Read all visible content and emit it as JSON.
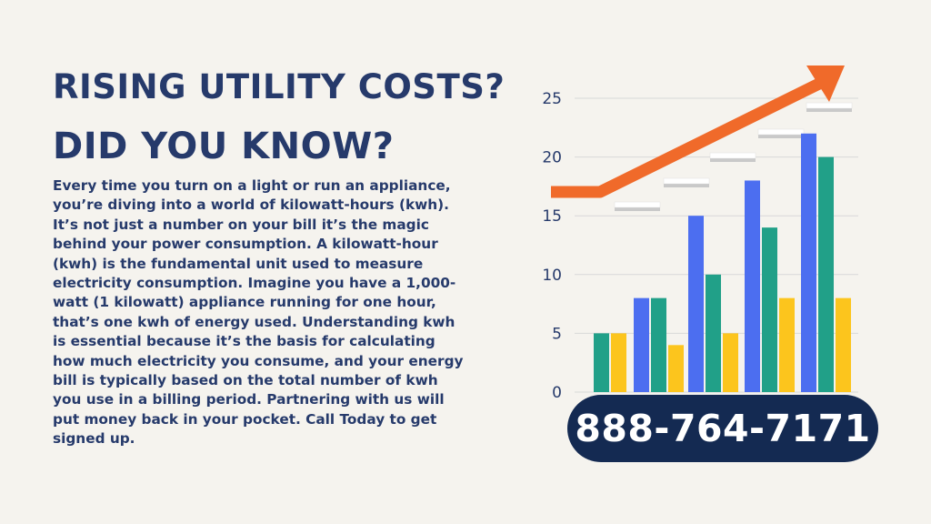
{
  "heading": {
    "line1": "RISING UTILITY COSTS?",
    "line2": "DID YOU KNOW?"
  },
  "body_text": "Every time you turn on a light or run an appliance, you’re diving into a world of kilowatt-hours (kwh). It’s not just a number on your bill it’s the magic behind your power consumption. A kilowatt-hour (kwh) is the fundamental unit used to measure electricity consumption. Imagine you have a 1,000-watt (1 kilowatt) appliance running for one hour, that’s one kwh of energy used. Understanding kwh is essential because it’s the basis for calculating how much electricity you consume, and your energy bill is typically based on the total number of kwh you use in a billing period. Partnering with us will put money back in your pocket. Call Today to get signed up.",
  "phone": "888-764-7171",
  "colors": {
    "heading": "#263a6b",
    "pill": "#142a52",
    "arrow": "#f06a2a",
    "blue": "#4c6ef0",
    "green": "#21a088",
    "yellow": "#fcc51d",
    "background": "#f5f3ee"
  },
  "chart_data": {
    "type": "bar",
    "categories": [
      "",
      "",
      "",
      "",
      ""
    ],
    "series": [
      {
        "color": "#4c6ef0",
        "values": [
          null,
          8,
          15,
          18,
          22
        ]
      },
      {
        "color": "#21a088",
        "values": [
          5,
          8,
          10,
          14,
          20
        ]
      },
      {
        "color": "#fcc51d",
        "values": [
          5,
          4,
          5,
          8,
          8
        ]
      }
    ],
    "yticks": [
      0,
      5,
      10,
      15,
      20,
      25
    ],
    "ylim": [
      0,
      25
    ],
    "grid": true,
    "overlay": "rising orange arrow (upward trend)",
    "title": "",
    "xlabel": "",
    "ylabel": ""
  }
}
